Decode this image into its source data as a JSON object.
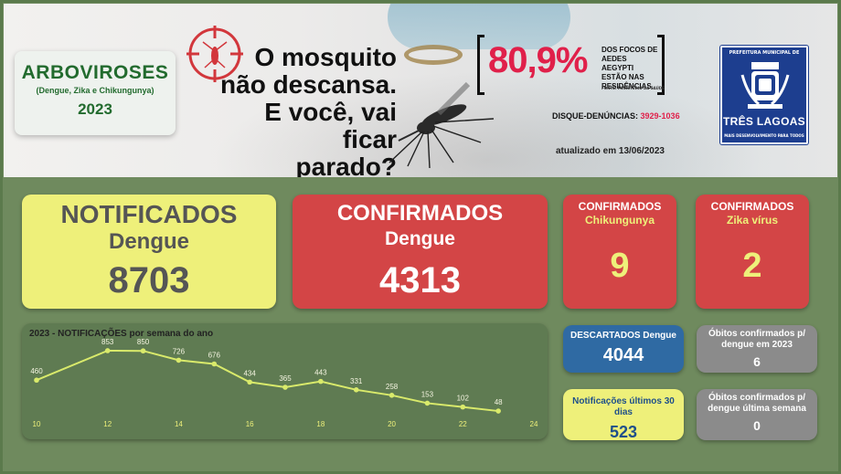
{
  "banner": {
    "arboviroses": {
      "title": "ARBOVIROSES",
      "subtitle": "(Dengue, Zika e Chikungunya)",
      "year": "2023"
    },
    "headline": [
      "O mosquito",
      "não descansa.",
      "E você, vai ficar",
      "parado?"
    ],
    "stat": {
      "percent": "80,9%",
      "description": [
        "DOS FOCOS DE",
        "AEDES AEGYPTI",
        "ESTÃO NAS",
        "RESIDÊNCIAS."
      ],
      "source": "FONTE: MINISTÉRIO DA SAÚDE"
    },
    "disque": {
      "label": "DISQUE-DENÚNCIAS:",
      "number": "3929-1036"
    },
    "updated": "atualizado em 13/06/2023",
    "logo": {
      "top": "PREFEITURA MUNICIPAL DE",
      "name": "TRÊS LAGOAS",
      "slogan": "MAIS DESENVOLVIMENTO PARA TODOS"
    }
  },
  "cards": {
    "notificados": {
      "line1": "NOTIFICADOS",
      "line2": "Dengue",
      "value": "8703"
    },
    "confirmados": {
      "line1": "CONFIRMADOS",
      "line2": "Dengue",
      "value": "4313"
    },
    "chikungunya": {
      "line1": "CONFIRMADOS",
      "line2": "Chikungunya",
      "value": "9"
    },
    "zika": {
      "line1": "CONFIRMADOS",
      "line2": "Zika vírus",
      "value": "2"
    },
    "descartados": {
      "line1": "DESCARTADOS Dengue",
      "value": "4044"
    },
    "ultimos30": {
      "line1": "Notificações últimos 30 dias",
      "value": "523"
    },
    "obitos_ano": {
      "line1": "Óbitos confirmados p/",
      "line2": "dengue em 2023",
      "value": "6"
    },
    "obitos_semana": {
      "line1": "Óbitos confirmados p/",
      "line2": "dengue última semana",
      "value": "0"
    }
  },
  "colors": {
    "yellow": "#eef07a",
    "red": "#d34546",
    "blue": "#2f6aa3",
    "gray": "#8b8b8b",
    "background": "#6f8a5e",
    "line": "#d9ea6b"
  },
  "chart_data": {
    "type": "line",
    "title": "2023 - NOTIFICAÇÕES por semana do ano",
    "x": [
      10,
      12,
      13,
      14,
      15,
      16,
      17,
      18,
      19,
      20,
      21,
      22,
      23
    ],
    "values": [
      460,
      853,
      850,
      726,
      676,
      434,
      365,
      443,
      331,
      258,
      153,
      102,
      48
    ],
    "x_ticks": [
      10,
      12,
      14,
      16,
      18,
      20,
      22,
      24
    ],
    "xlim": [
      10,
      24
    ],
    "ylim": [
      0,
      950
    ]
  }
}
